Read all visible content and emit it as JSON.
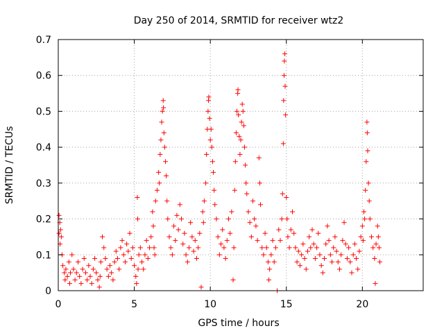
{
  "chart_data": {
    "type": "scatter",
    "title": "Day 250 of 2014, SRMTID for receiver wtz2",
    "xlabel": "GPS time / hours",
    "ylabel": "SRMTID / TECUs",
    "xlim": [
      0,
      24
    ],
    "ylim": [
      0,
      0.7
    ],
    "xticks": [
      0,
      5,
      10,
      15,
      20
    ],
    "yticks": [
      0,
      0.1,
      0.2,
      0.3,
      0.4,
      0.5,
      0.6,
      0.7
    ],
    "xtick_labels": [
      "0",
      "5",
      "10",
      "15",
      "20"
    ],
    "ytick_labels": [
      "0",
      "0.1",
      "0.2",
      "0.3",
      "0.4",
      "0.5",
      "0.6",
      "0.7"
    ],
    "grid": true,
    "marker": "+",
    "color": "#ff0000",
    "series": [
      {
        "name": "wtz2",
        "points": [
          [
            0.05,
            0.21
          ],
          [
            0.05,
            0.16
          ],
          [
            0.1,
            0.19
          ],
          [
            0.12,
            0.13
          ],
          [
            0.15,
            0.17
          ],
          [
            0.2,
            0.15
          ],
          [
            0.25,
            0.1
          ],
          [
            0.3,
            0.07
          ],
          [
            0.4,
            0.05
          ],
          [
            0.45,
            0.03
          ],
          [
            0.5,
            0.06
          ],
          [
            0.6,
            0.04
          ],
          [
            0.7,
            0.08
          ],
          [
            0.75,
            0.02
          ],
          [
            0.8,
            0.05
          ],
          [
            0.9,
            0.1
          ],
          [
            1.0,
            0.06
          ],
          [
            1.1,
            0.03
          ],
          [
            1.2,
            0.05
          ],
          [
            1.3,
            0.08
          ],
          [
            1.4,
            0.04
          ],
          [
            1.5,
            0.02
          ],
          [
            1.6,
            0.06
          ],
          [
            1.7,
            0.09
          ],
          [
            1.8,
            0.05
          ],
          [
            1.9,
            0.03
          ],
          [
            2.0,
            0.07
          ],
          [
            2.1,
            0.04
          ],
          [
            2.2,
            0.02
          ],
          [
            2.3,
            0.06
          ],
          [
            2.4,
            0.09
          ],
          [
            2.5,
            0.05
          ],
          [
            2.6,
            0.03
          ],
          [
            2.7,
            0.01
          ],
          [
            2.75,
            0.04
          ],
          [
            2.8,
            0.08
          ],
          [
            2.9,
            0.15
          ],
          [
            3.0,
            0.12
          ],
          [
            3.1,
            0.09
          ],
          [
            3.2,
            0.06
          ],
          [
            3.3,
            0.04
          ],
          [
            3.4,
            0.07
          ],
          [
            3.5,
            0.05
          ],
          [
            3.6,
            0.03
          ],
          [
            3.7,
            0.08
          ],
          [
            3.8,
            0.11
          ],
          [
            3.9,
            0.09
          ],
          [
            4.0,
            0.06
          ],
          [
            4.1,
            0.12
          ],
          [
            4.2,
            0.14
          ],
          [
            4.3,
            0.1
          ],
          [
            4.4,
            0.08
          ],
          [
            4.5,
            0.13
          ],
          [
            4.6,
            0.11
          ],
          [
            4.7,
            0.16
          ],
          [
            4.8,
            0.09
          ],
          [
            4.9,
            0.12
          ],
          [
            5.0,
            0.07
          ],
          [
            5.1,
            0.04
          ],
          [
            5.15,
            0.02
          ],
          [
            5.2,
            0.26
          ],
          [
            5.22,
            0.2
          ],
          [
            5.25,
            0.06
          ],
          [
            5.3,
            0.1
          ],
          [
            5.4,
            0.12
          ],
          [
            5.5,
            0.08
          ],
          [
            5.6,
            0.06
          ],
          [
            5.7,
            0.1
          ],
          [
            5.8,
            0.14
          ],
          [
            5.9,
            0.09
          ],
          [
            6.0,
            0.12
          ],
          [
            6.1,
            0.15
          ],
          [
            6.2,
            0.22
          ],
          [
            6.25,
            0.18
          ],
          [
            6.3,
            0.12
          ],
          [
            6.35,
            0.1
          ],
          [
            6.4,
            0.25
          ],
          [
            6.5,
            0.28
          ],
          [
            6.6,
            0.33
          ],
          [
            6.65,
            0.3
          ],
          [
            6.7,
            0.38
          ],
          [
            6.75,
            0.42
          ],
          [
            6.8,
            0.47
          ],
          [
            6.85,
            0.5
          ],
          [
            6.9,
            0.53
          ],
          [
            6.92,
            0.51
          ],
          [
            6.95,
            0.44
          ],
          [
            7.0,
            0.4
          ],
          [
            7.05,
            0.36
          ],
          [
            7.1,
            0.32
          ],
          [
            7.15,
            0.25
          ],
          [
            7.2,
            0.2
          ],
          [
            7.3,
            0.15
          ],
          [
            7.4,
            0.12
          ],
          [
            7.5,
            0.1
          ],
          [
            7.6,
            0.18
          ],
          [
            7.7,
            0.14
          ],
          [
            7.8,
            0.21
          ],
          [
            7.9,
            0.17
          ],
          [
            8.0,
            0.24
          ],
          [
            8.1,
            0.2
          ],
          [
            8.2,
            0.13
          ],
          [
            8.3,
            0.16
          ],
          [
            8.4,
            0.1
          ],
          [
            8.5,
            0.08
          ],
          [
            8.6,
            0.12
          ],
          [
            8.7,
            0.19
          ],
          [
            8.8,
            0.15
          ],
          [
            8.9,
            0.11
          ],
          [
            9.0,
            0.14
          ],
          [
            9.1,
            0.09
          ],
          [
            9.2,
            0.12
          ],
          [
            9.3,
            0.16
          ],
          [
            9.4,
            0.01
          ],
          [
            9.5,
            0.22
          ],
          [
            9.55,
            0.19
          ],
          [
            9.6,
            0.25
          ],
          [
            9.7,
            0.3
          ],
          [
            9.75,
            0.38
          ],
          [
            9.8,
            0.45
          ],
          [
            9.85,
            0.5
          ],
          [
            9.88,
            0.53
          ],
          [
            9.9,
            0.54
          ],
          [
            9.95,
            0.48
          ],
          [
            10.0,
            0.42
          ],
          [
            10.05,
            0.45
          ],
          [
            10.1,
            0.4
          ],
          [
            10.15,
            0.36
          ],
          [
            10.2,
            0.33
          ],
          [
            10.25,
            0.28
          ],
          [
            10.3,
            0.24
          ],
          [
            10.4,
            0.2
          ],
          [
            10.5,
            0.15
          ],
          [
            10.6,
            0.1
          ],
          [
            10.7,
            0.13
          ],
          [
            10.8,
            0.17
          ],
          [
            10.9,
            0.12
          ],
          [
            11.0,
            0.09
          ],
          [
            11.1,
            0.14
          ],
          [
            11.2,
            0.2
          ],
          [
            11.3,
            0.16
          ],
          [
            11.4,
            0.22
          ],
          [
            11.5,
            0.03
          ],
          [
            11.55,
            0.12
          ],
          [
            11.6,
            0.28
          ],
          [
            11.65,
            0.36
          ],
          [
            11.7,
            0.44
          ],
          [
            11.75,
            0.5
          ],
          [
            11.8,
            0.55
          ],
          [
            11.82,
            0.56
          ],
          [
            11.85,
            0.49
          ],
          [
            11.9,
            0.43
          ],
          [
            11.95,
            0.38
          ],
          [
            12.0,
            0.42
          ],
          [
            12.05,
            0.47
          ],
          [
            12.1,
            0.52
          ],
          [
            12.15,
            0.5
          ],
          [
            12.2,
            0.46
          ],
          [
            12.25,
            0.4
          ],
          [
            12.3,
            0.35
          ],
          [
            12.35,
            0.3
          ],
          [
            12.4,
            0.27
          ],
          [
            12.5,
            0.22
          ],
          [
            12.6,
            0.19
          ],
          [
            12.7,
            0.15
          ],
          [
            12.8,
            0.25
          ],
          [
            12.9,
            0.2
          ],
          [
            13.0,
            0.18
          ],
          [
            13.1,
            0.14
          ],
          [
            13.2,
            0.37
          ],
          [
            13.25,
            0.3
          ],
          [
            13.3,
            0.24
          ],
          [
            13.4,
            0.12
          ],
          [
            13.5,
            0.1
          ],
          [
            13.6,
            0.16
          ],
          [
            13.7,
            0.12
          ],
          [
            13.8,
            0.08
          ],
          [
            13.85,
            0.03
          ],
          [
            13.9,
            0.06
          ],
          [
            14.0,
            0.1
          ],
          [
            14.1,
            0.14
          ],
          [
            14.2,
            0.08
          ],
          [
            14.3,
            0.12
          ],
          [
            14.4,
            0.0
          ],
          [
            14.5,
            0.17
          ],
          [
            14.6,
            0.14
          ],
          [
            14.7,
            0.2
          ],
          [
            14.75,
            0.27
          ],
          [
            14.8,
            0.41
          ],
          [
            14.82,
            0.53
          ],
          [
            14.85,
            0.6
          ],
          [
            14.87,
            0.64
          ],
          [
            14.9,
            0.66
          ],
          [
            14.92,
            0.57
          ],
          [
            14.95,
            0.49
          ],
          [
            15.0,
            0.26
          ],
          [
            15.05,
            0.2
          ],
          [
            15.1,
            0.15
          ],
          [
            15.2,
            0.12
          ],
          [
            15.3,
            0.17
          ],
          [
            15.4,
            0.22
          ],
          [
            15.5,
            0.16
          ],
          [
            15.6,
            0.12
          ],
          [
            15.7,
            0.08
          ],
          [
            15.8,
            0.11
          ],
          [
            15.9,
            0.07
          ],
          [
            16.0,
            0.1
          ],
          [
            16.1,
            0.13
          ],
          [
            16.2,
            0.09
          ],
          [
            16.3,
            0.06
          ],
          [
            16.4,
            0.11
          ],
          [
            16.5,
            0.15
          ],
          [
            16.6,
            0.12
          ],
          [
            16.7,
            0.17
          ],
          [
            16.8,
            0.13
          ],
          [
            16.9,
            0.09
          ],
          [
            17.0,
            0.12
          ],
          [
            17.1,
            0.16
          ],
          [
            17.2,
            0.1
          ],
          [
            17.3,
            0.07
          ],
          [
            17.4,
            0.05
          ],
          [
            17.5,
            0.09
          ],
          [
            17.6,
            0.13
          ],
          [
            17.7,
            0.18
          ],
          [
            17.8,
            0.14
          ],
          [
            17.9,
            0.1
          ],
          [
            18.0,
            0.08
          ],
          [
            18.1,
            0.12
          ],
          [
            18.2,
            0.15
          ],
          [
            18.3,
            0.11
          ],
          [
            18.4,
            0.08
          ],
          [
            18.5,
            0.06
          ],
          [
            18.6,
            0.1
          ],
          [
            18.7,
            0.14
          ],
          [
            18.8,
            0.19
          ],
          [
            18.9,
            0.13
          ],
          [
            19.0,
            0.09
          ],
          [
            19.1,
            0.12
          ],
          [
            19.2,
            0.08
          ],
          [
            19.3,
            0.05
          ],
          [
            19.4,
            0.1
          ],
          [
            19.5,
            0.13
          ],
          [
            19.6,
            0.09
          ],
          [
            19.7,
            0.06
          ],
          [
            19.8,
            0.11
          ],
          [
            19.9,
            0.15
          ],
          [
            20.0,
            0.18
          ],
          [
            20.05,
            0.14
          ],
          [
            20.1,
            0.22
          ],
          [
            20.15,
            0.2
          ],
          [
            20.2,
            0.28
          ],
          [
            20.25,
            0.36
          ],
          [
            20.3,
            0.47
          ],
          [
            20.32,
            0.44
          ],
          [
            20.35,
            0.39
          ],
          [
            20.4,
            0.3
          ],
          [
            20.45,
            0.25
          ],
          [
            20.5,
            0.2
          ],
          [
            20.6,
            0.15
          ],
          [
            20.7,
            0.12
          ],
          [
            20.8,
            0.09
          ],
          [
            20.85,
            0.02
          ],
          [
            20.9,
            0.13
          ],
          [
            21.0,
            0.18
          ],
          [
            21.05,
            0.15
          ],
          [
            21.1,
            0.12
          ],
          [
            21.15,
            0.08
          ]
        ]
      }
    ]
  }
}
